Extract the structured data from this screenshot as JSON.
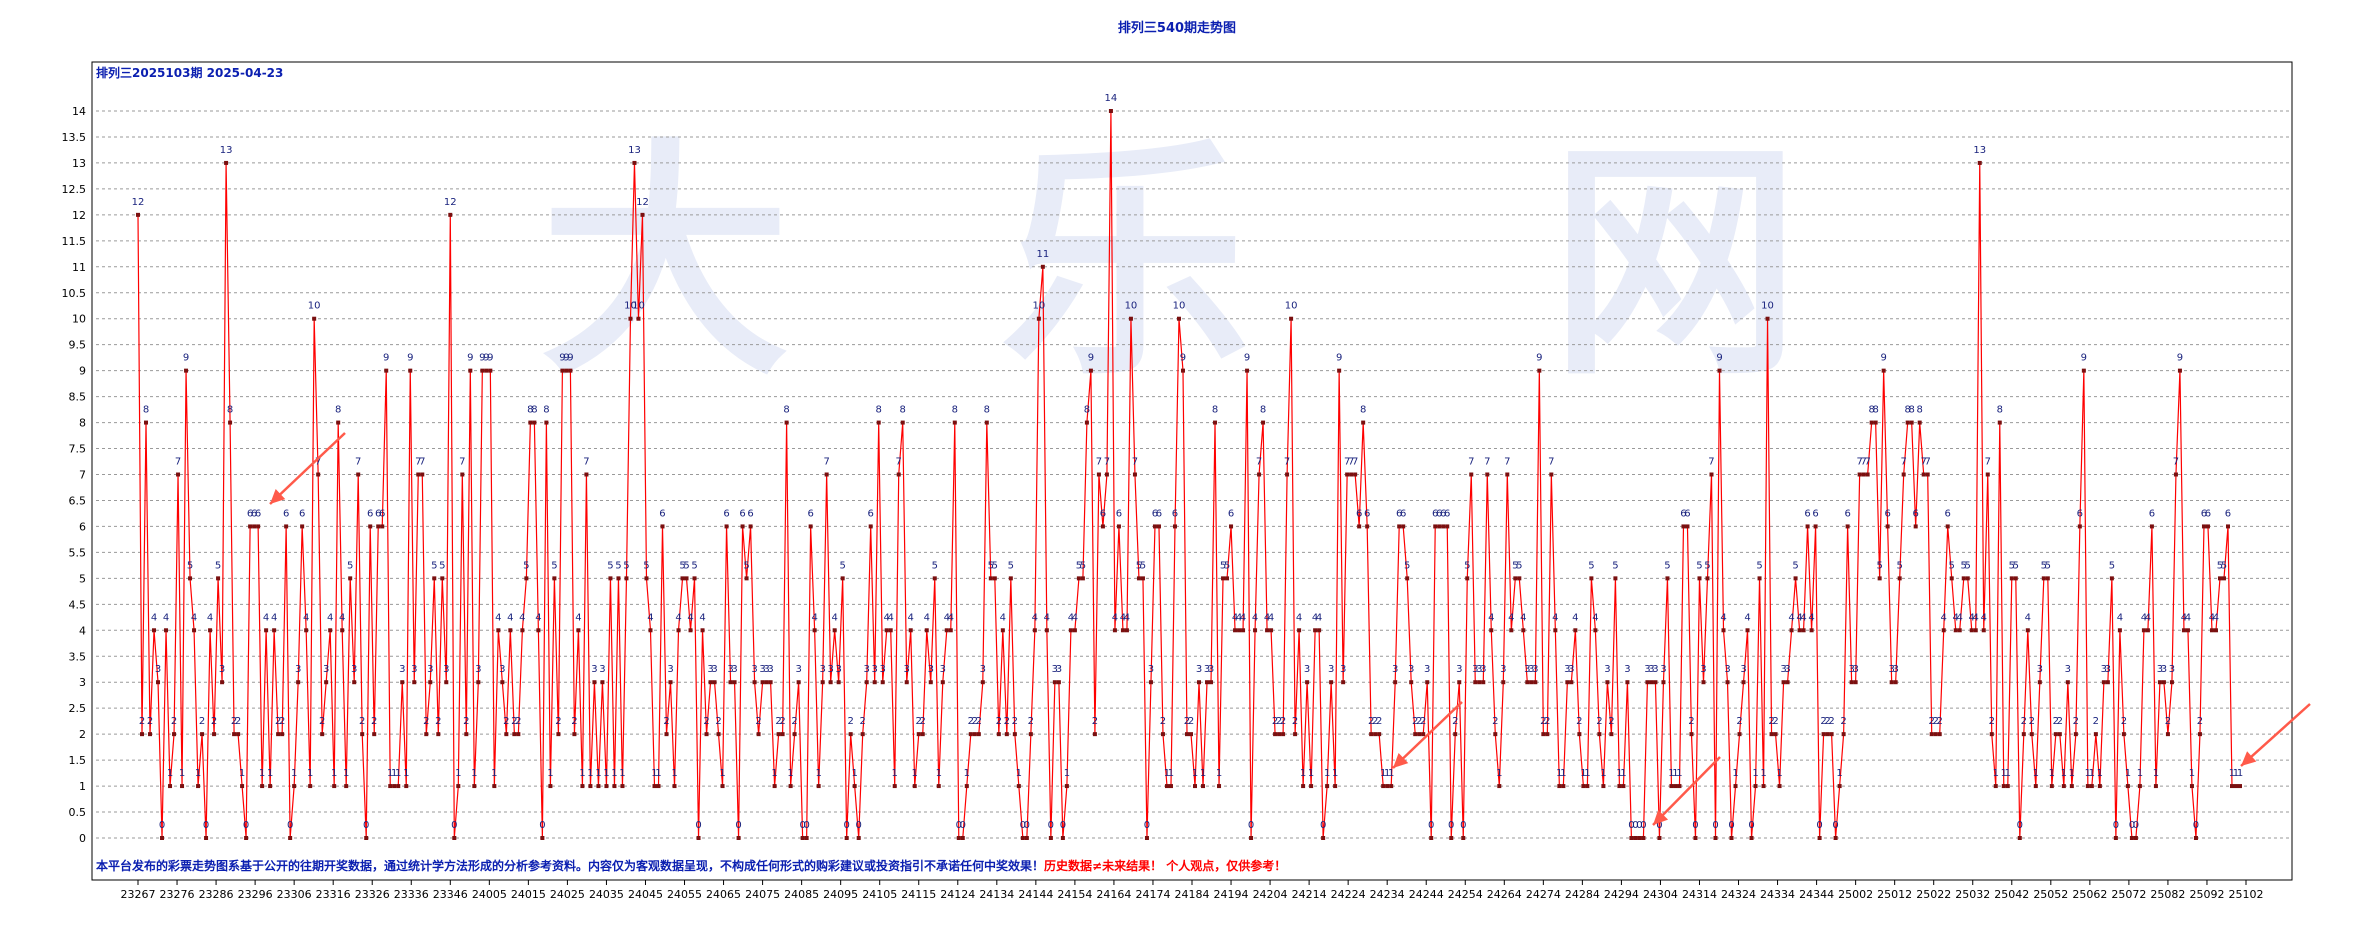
{
  "chart_data": {
    "type": "line",
    "title": "排列三540期走势图",
    "subtitle": "排列三2025103期 2025-04-23",
    "ylim": [
      0,
      14.5
    ],
    "yticks": [
      0,
      0.5,
      1,
      1.5,
      2,
      2.5,
      3,
      3.5,
      4,
      4.5,
      5,
      5.5,
      6,
      6.5,
      7,
      7.5,
      8,
      8.5,
      9,
      9.5,
      10,
      10.5,
      11,
      11.5,
      12,
      12.5,
      13,
      13.5,
      14
    ],
    "xticks": [
      "23267",
      "23276",
      "23286",
      "23296",
      "23306",
      "23316",
      "23326",
      "23336",
      "23346",
      "24005",
      "24015",
      "24025",
      "24035",
      "24045",
      "24055",
      "24065",
      "24075",
      "24085",
      "24095",
      "24105",
      "24115",
      "24124",
      "24134",
      "24144",
      "24154",
      "24164",
      "24174",
      "24184",
      "24194",
      "24204",
      "24214",
      "24224",
      "24234",
      "24244",
      "24254",
      "24264",
      "24274",
      "24284",
      "24294",
      "24304",
      "24314",
      "24324",
      "24334",
      "24344",
      "25002",
      "25012",
      "25022",
      "25032",
      "25042",
      "25052",
      "25062",
      "25072",
      "25082",
      "25092",
      "25102"
    ],
    "grid": true,
    "series": [
      {
        "color": "#ff0000",
        "values": [
          12,
          2,
          8,
          2,
          4,
          3,
          0,
          4,
          1,
          2,
          7,
          1,
          9,
          5,
          4,
          1,
          2,
          0,
          4,
          2,
          5,
          3,
          13,
          8,
          2,
          2,
          1,
          0,
          6,
          6,
          6,
          1,
          4,
          1,
          4,
          2,
          2,
          6,
          0,
          1,
          3,
          6,
          4,
          1,
          10,
          7,
          2,
          3,
          4,
          1,
          8,
          4,
          1,
          5,
          3,
          7,
          2,
          0,
          6,
          2,
          6,
          6,
          9,
          1,
          1,
          1,
          3,
          1,
          9,
          3,
          7,
          7,
          2,
          3,
          5,
          2,
          5,
          3,
          12,
          0,
          1,
          7,
          2,
          9,
          1,
          3,
          9,
          9,
          9,
          1,
          4,
          3,
          2,
          4,
          2,
          2,
          4,
          5,
          8,
          8,
          4,
          0,
          8,
          1,
          5,
          2,
          9,
          9,
          9,
          2,
          4,
          1,
          7,
          1,
          3,
          1,
          3,
          1,
          5,
          1,
          5,
          1,
          5,
          10,
          13,
          10,
          12,
          5,
          4,
          1,
          1,
          6,
          2,
          3,
          1,
          4,
          5,
          5,
          4,
          5,
          0,
          4,
          2,
          3,
          3,
          2,
          1,
          6,
          3,
          3,
          0,
          6,
          5,
          6,
          3,
          2,
          3,
          3,
          3,
          1,
          2,
          2,
          8,
          1,
          2,
          3,
          0,
          0,
          6,
          4,
          1,
          3,
          7,
          3,
          4,
          3,
          5,
          0,
          2,
          1,
          0,
          2,
          3,
          6,
          3,
          8,
          3,
          4,
          4,
          1,
          7,
          8,
          3,
          4,
          1,
          2,
          2,
          4,
          3,
          5,
          1,
          3,
          4,
          4,
          8,
          0,
          0,
          1,
          2,
          2,
          2,
          3,
          8,
          5,
          5,
          2,
          4,
          2,
          5,
          2,
          1,
          0,
          0,
          2,
          4,
          10,
          11,
          4,
          0,
          3,
          3,
          0,
          1,
          4,
          4,
          5,
          5,
          8,
          9,
          2,
          7,
          6,
          7,
          14,
          4,
          6,
          4,
          4,
          10,
          7,
          5,
          5,
          0,
          3,
          6,
          6,
          2,
          1,
          1,
          6,
          10,
          9,
          2,
          2,
          1,
          3,
          1,
          3,
          3,
          8,
          1,
          5,
          5,
          6,
          4,
          4,
          4,
          9,
          0,
          4,
          7,
          8,
          4,
          4,
          2,
          2,
          2,
          7,
          10,
          2,
          4,
          1,
          3,
          1,
          4,
          4,
          0,
          1,
          3,
          1,
          9,
          3,
          7,
          7,
          7,
          6,
          8,
          6,
          2,
          2,
          2,
          1,
          1,
          1,
          3,
          6,
          6,
          5,
          3,
          2,
          2,
          2,
          3,
          0,
          6,
          6,
          6,
          6,
          0,
          2,
          3,
          0,
          5,
          7,
          3,
          3,
          3,
          7,
          4,
          2,
          1,
          3,
          7,
          4,
          5,
          5,
          4,
          3,
          3,
          3,
          9,
          2,
          2,
          7,
          4,
          1,
          1,
          3,
          3,
          4,
          2,
          1,
          1,
          5,
          4,
          2,
          1,
          3,
          2,
          5,
          1,
          1,
          3,
          0,
          0,
          0,
          0,
          3,
          3,
          3,
          0,
          3,
          5,
          1,
          1,
          1,
          6,
          6,
          2,
          0,
          5,
          3,
          5,
          7,
          0,
          9,
          4,
          3,
          0,
          1,
          2,
          3,
          4,
          0,
          1,
          5,
          1,
          10,
          2,
          2,
          1,
          3,
          3,
          4,
          5,
          4,
          4,
          6,
          4,
          6,
          0,
          2,
          2,
          2,
          0,
          1,
          2,
          6,
          3,
          3,
          7,
          7,
          7,
          8,
          8,
          5,
          9,
          6,
          3,
          3,
          5,
          7,
          8,
          8,
          6,
          8,
          7,
          7,
          2,
          2,
          2,
          4,
          6,
          5,
          4,
          4,
          5,
          5,
          4,
          4,
          13,
          4,
          7,
          2,
          1,
          8,
          1,
          1,
          5,
          5,
          0,
          2,
          4,
          2,
          1,
          3,
          5,
          5,
          1,
          2,
          2,
          1,
          3,
          1,
          2,
          6,
          9,
          1,
          1,
          2,
          1,
          3,
          3,
          5,
          0,
          4,
          2,
          1,
          0,
          0,
          1,
          4,
          4,
          6,
          1,
          3,
          3,
          2,
          3,
          7,
          9,
          4,
          4,
          1,
          0,
          2,
          6,
          6,
          4,
          4,
          5,
          5,
          6,
          1,
          1,
          1
        ]
      }
    ],
    "watermark": [
      "大",
      "乐",
      "网"
    ],
    "annotation_arrows": 4
  },
  "footer": {
    "note_blue": "本平台发布的彩票走势图系基于公开的往期开奖数据，通过统计学方法形成的分析参考资料。内容仅为客观数据呈现，不构成任何形式的购彩建议或投资指引不承诺任何中奖效果！",
    "note_red": "历史数据≠未来结果！ 个人观点，仅供参考！",
    "color_blue": "#0b1fb0",
    "color_red": "#ff0000"
  }
}
